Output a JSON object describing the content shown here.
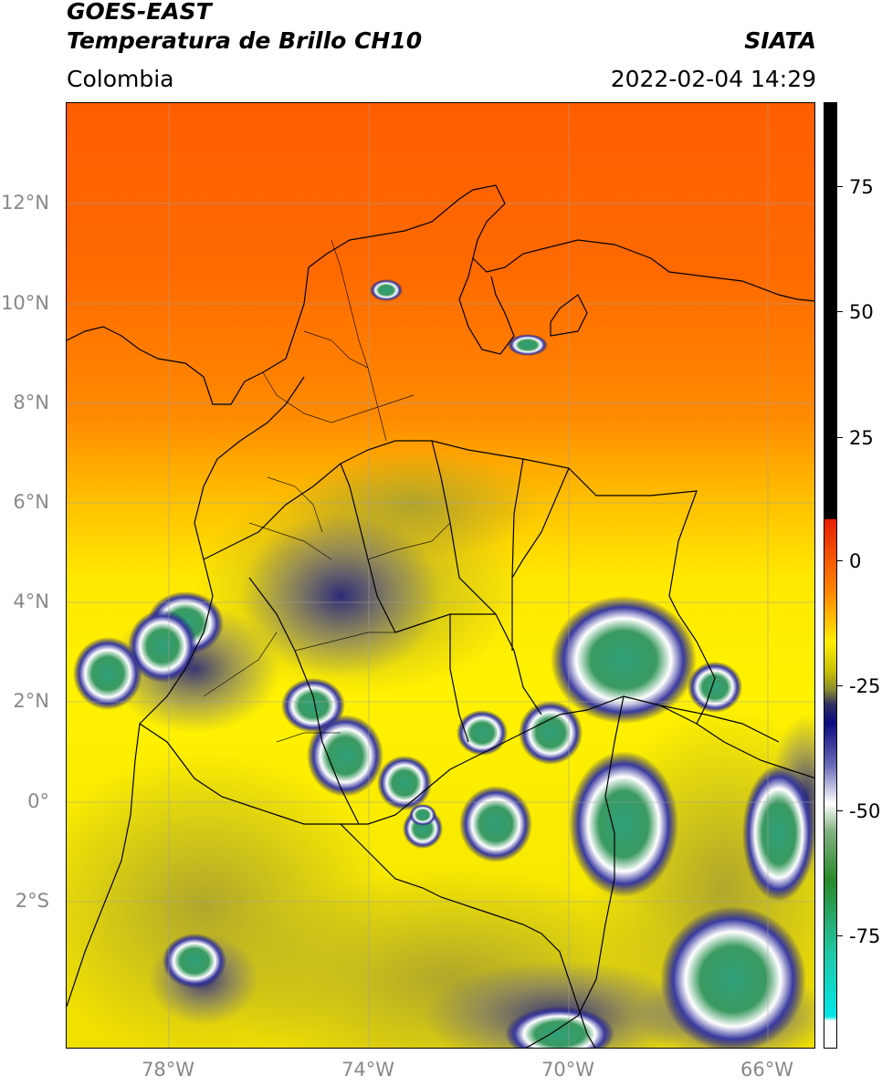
{
  "header": {
    "line1": "GOES-EAST",
    "line2": "Temperatura de Brillo CH10",
    "org": "SIATA",
    "region": "Colombia",
    "datetime": "2022-02-04 14:29"
  },
  "map": {
    "lat_labels": [
      "12°N",
      "10°N",
      "8°N",
      "6°N",
      "4°N",
      "2°N",
      "0°",
      "2°S"
    ],
    "lon_labels": [
      "78°W",
      "74°W",
      "70°W",
      "66°W"
    ]
  },
  "colorbar": {
    "ticks": [
      "75",
      "50",
      "25",
      "0",
      "-25",
      "-50",
      "-75"
    ],
    "colors": {
      "black": "#000000",
      "red": "#e61e00",
      "orange": "#ff8c00",
      "yellow": "#ffee00",
      "olive": "#9a9a1e",
      "navy": "#0a0a80",
      "white": "#ffffff",
      "green": "#2a8a2a",
      "teal": "#20c8a8",
      "cyan": "#00e6e6"
    }
  }
}
